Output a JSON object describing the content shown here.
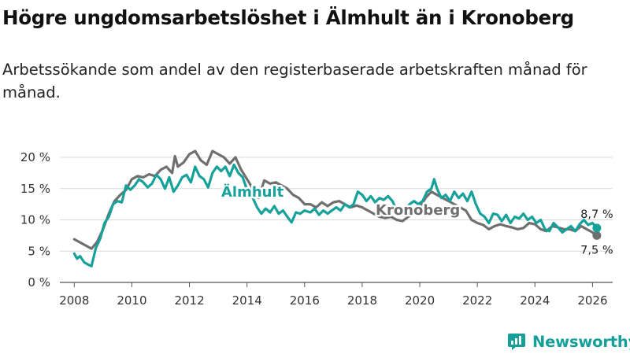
{
  "title": "Högre ungdomsarbetslöshet i Älmhult än i Kronoberg",
  "subtitle": "Arbetssökande som andel av den registerbaserade arbetskraften månad för månad.",
  "brand": {
    "name": "Newsworthy",
    "icon": "newsworthy-logo-icon"
  },
  "colors": {
    "almhult": "#16a19a",
    "kronoberg": "#6f6f6f",
    "grid": "#d9d9d9",
    "axis": "#555555"
  },
  "chart_data": {
    "type": "line",
    "title": "Högre ungdomsarbetslöshet i Älmhult än i Kronoberg",
    "xlabel": "",
    "ylabel": "",
    "xlim": [
      2007.5,
      2026.7
    ],
    "ylim": [
      0,
      21
    ],
    "y_ticks": [
      0,
      5,
      10,
      15,
      20
    ],
    "y_tick_labels": [
      "0 %",
      "5 %",
      "10 %",
      "15 %",
      "20 %"
    ],
    "x_ticks": [
      2008,
      2010,
      2012,
      2014,
      2016,
      2018,
      2020,
      2022,
      2024,
      2026
    ],
    "x_tick_labels": [
      "2008",
      "2010",
      "2012",
      "2014",
      "2016",
      "2018",
      "2020",
      "2022",
      "2024",
      "2026"
    ],
    "grid": true,
    "series": [
      {
        "name": "Kronoberg",
        "label": "Kronoberg",
        "end_label": "7,5 %",
        "end_value": 7.5,
        "points": [
          [
            2008.0,
            6.9
          ],
          [
            2008.2,
            6.4
          ],
          [
            2008.4,
            5.9
          ],
          [
            2008.6,
            5.4
          ],
          [
            2008.8,
            6.5
          ],
          [
            2009.0,
            8.5
          ],
          [
            2009.2,
            11.0
          ],
          [
            2009.4,
            13.0
          ],
          [
            2009.6,
            14.0
          ],
          [
            2009.8,
            14.8
          ],
          [
            2010.0,
            16.5
          ],
          [
            2010.2,
            17.0
          ],
          [
            2010.4,
            16.8
          ],
          [
            2010.6,
            17.3
          ],
          [
            2010.8,
            17.0
          ],
          [
            2011.0,
            18.0
          ],
          [
            2011.2,
            18.5
          ],
          [
            2011.4,
            17.5
          ],
          [
            2011.5,
            20.2
          ],
          [
            2011.6,
            18.5
          ],
          [
            2011.8,
            19.2
          ],
          [
            2012.0,
            20.5
          ],
          [
            2012.2,
            21.0
          ],
          [
            2012.4,
            19.5
          ],
          [
            2012.6,
            18.8
          ],
          [
            2012.8,
            21.0
          ],
          [
            2013.0,
            20.5
          ],
          [
            2013.2,
            20.0
          ],
          [
            2013.4,
            19.0
          ],
          [
            2013.6,
            20.0
          ],
          [
            2013.8,
            18.0
          ],
          [
            2014.0,
            16.5
          ],
          [
            2014.2,
            15.0
          ],
          [
            2014.4,
            13.5
          ],
          [
            2014.6,
            16.3
          ],
          [
            2014.8,
            15.8
          ],
          [
            2015.0,
            16.0
          ],
          [
            2015.2,
            15.5
          ],
          [
            2015.4,
            15.0
          ],
          [
            2015.6,
            14.0
          ],
          [
            2015.8,
            13.5
          ],
          [
            2016.0,
            12.5
          ],
          [
            2016.2,
            12.5
          ],
          [
            2016.4,
            12.0
          ],
          [
            2016.6,
            12.8
          ],
          [
            2016.8,
            12.2
          ],
          [
            2017.0,
            12.8
          ],
          [
            2017.2,
            13.0
          ],
          [
            2017.4,
            12.5
          ],
          [
            2017.6,
            12.0
          ],
          [
            2017.8,
            12.3
          ],
          [
            2018.0,
            12.0
          ],
          [
            2018.2,
            11.5
          ],
          [
            2018.4,
            11.0
          ],
          [
            2018.6,
            10.5
          ],
          [
            2018.8,
            10.3
          ],
          [
            2019.0,
            10.5
          ],
          [
            2019.2,
            10.0
          ],
          [
            2019.4,
            9.8
          ],
          [
            2019.6,
            10.5
          ],
          [
            2019.8,
            11.0
          ],
          [
            2020.0,
            12.0
          ],
          [
            2020.2,
            13.5
          ],
          [
            2020.4,
            14.5
          ],
          [
            2020.6,
            14.0
          ],
          [
            2020.8,
            13.5
          ],
          [
            2021.0,
            13.0
          ],
          [
            2021.2,
            12.5
          ],
          [
            2021.4,
            12.0
          ],
          [
            2021.6,
            11.5
          ],
          [
            2021.8,
            10.0
          ],
          [
            2022.0,
            9.5
          ],
          [
            2022.2,
            9.2
          ],
          [
            2022.4,
            8.5
          ],
          [
            2022.6,
            9.0
          ],
          [
            2022.8,
            9.3
          ],
          [
            2023.0,
            9.0
          ],
          [
            2023.2,
            8.8
          ],
          [
            2023.4,
            8.5
          ],
          [
            2023.6,
            8.7
          ],
          [
            2023.8,
            9.5
          ],
          [
            2024.0,
            9.3
          ],
          [
            2024.2,
            8.5
          ],
          [
            2024.4,
            8.2
          ],
          [
            2024.6,
            9.0
          ],
          [
            2024.8,
            8.8
          ],
          [
            2025.0,
            8.5
          ],
          [
            2025.2,
            8.5
          ],
          [
            2025.4,
            8.2
          ],
          [
            2025.6,
            9.0
          ],
          [
            2025.8,
            8.5
          ],
          [
            2026.0,
            8.0
          ],
          [
            2026.15,
            7.5
          ]
        ]
      },
      {
        "name": "Älmhult",
        "label": "Älmhult",
        "end_label": "8,7 %",
        "end_value": 8.7,
        "points": [
          [
            2008.0,
            4.6
          ],
          [
            2008.1,
            3.8
          ],
          [
            2008.2,
            4.2
          ],
          [
            2008.35,
            3.2
          ],
          [
            2008.5,
            2.8
          ],
          [
            2008.6,
            2.6
          ],
          [
            2008.75,
            5.5
          ],
          [
            2008.9,
            7.0
          ],
          [
            2009.05,
            9.5
          ],
          [
            2009.2,
            10.5
          ],
          [
            2009.35,
            12.5
          ],
          [
            2009.5,
            13.0
          ],
          [
            2009.65,
            12.8
          ],
          [
            2009.8,
            15.5
          ],
          [
            2009.95,
            14.8
          ],
          [
            2010.1,
            15.5
          ],
          [
            2010.25,
            16.5
          ],
          [
            2010.4,
            16.0
          ],
          [
            2010.55,
            15.2
          ],
          [
            2010.7,
            15.8
          ],
          [
            2010.85,
            17.2
          ],
          [
            2011.0,
            16.5
          ],
          [
            2011.15,
            15.0
          ],
          [
            2011.3,
            16.8
          ],
          [
            2011.45,
            14.5
          ],
          [
            2011.6,
            15.5
          ],
          [
            2011.75,
            16.8
          ],
          [
            2011.9,
            17.2
          ],
          [
            2012.05,
            16.0
          ],
          [
            2012.2,
            18.5
          ],
          [
            2012.35,
            17.0
          ],
          [
            2012.5,
            16.5
          ],
          [
            2012.65,
            15.2
          ],
          [
            2012.8,
            17.5
          ],
          [
            2012.95,
            18.5
          ],
          [
            2013.1,
            17.8
          ],
          [
            2013.25,
            18.5
          ],
          [
            2013.4,
            17.0
          ],
          [
            2013.55,
            18.8
          ],
          [
            2013.7,
            17.5
          ],
          [
            2013.85,
            16.8
          ],
          [
            2014.0,
            14.8
          ],
          [
            2014.2,
            13.5
          ],
          [
            2014.35,
            12.0
          ],
          [
            2014.5,
            11.0
          ],
          [
            2014.65,
            11.8
          ],
          [
            2014.8,
            11.2
          ],
          [
            2014.95,
            12.2
          ],
          [
            2015.1,
            11.0
          ],
          [
            2015.25,
            11.5
          ],
          [
            2015.4,
            10.5
          ],
          [
            2015.55,
            9.6
          ],
          [
            2015.7,
            11.2
          ],
          [
            2015.85,
            11.0
          ],
          [
            2016.0,
            11.5
          ],
          [
            2016.2,
            11.2
          ],
          [
            2016.35,
            11.8
          ],
          [
            2016.5,
            10.8
          ],
          [
            2016.65,
            11.5
          ],
          [
            2016.8,
            11.0
          ],
          [
            2016.95,
            11.5
          ],
          [
            2017.1,
            12.0
          ],
          [
            2017.25,
            11.5
          ],
          [
            2017.4,
            12.5
          ],
          [
            2017.55,
            12.0
          ],
          [
            2017.7,
            12.5
          ],
          [
            2017.85,
            14.5
          ],
          [
            2018.0,
            14.0
          ],
          [
            2018.15,
            13.0
          ],
          [
            2018.3,
            13.8
          ],
          [
            2018.45,
            12.8
          ],
          [
            2018.6,
            13.5
          ],
          [
            2018.75,
            13.2
          ],
          [
            2018.9,
            13.8
          ],
          [
            2019.05,
            13.0
          ],
          [
            2019.2,
            11.5
          ],
          [
            2019.35,
            12.0
          ],
          [
            2019.5,
            11.8
          ],
          [
            2019.65,
            12.5
          ],
          [
            2019.8,
            13.0
          ],
          [
            2019.95,
            12.5
          ],
          [
            2020.1,
            13.0
          ],
          [
            2020.25,
            14.5
          ],
          [
            2020.4,
            15.0
          ],
          [
            2020.5,
            16.5
          ],
          [
            2020.6,
            15.0
          ],
          [
            2020.75,
            13.5
          ],
          [
            2020.9,
            14.0
          ],
          [
            2021.05,
            13.0
          ],
          [
            2021.2,
            14.5
          ],
          [
            2021.35,
            13.5
          ],
          [
            2021.5,
            14.2
          ],
          [
            2021.65,
            13.0
          ],
          [
            2021.8,
            14.5
          ],
          [
            2021.95,
            12.5
          ],
          [
            2022.1,
            11.0
          ],
          [
            2022.25,
            10.5
          ],
          [
            2022.4,
            9.5
          ],
          [
            2022.55,
            11.0
          ],
          [
            2022.7,
            10.8
          ],
          [
            2022.85,
            9.8
          ],
          [
            2023.0,
            10.8
          ],
          [
            2023.15,
            9.5
          ],
          [
            2023.3,
            10.5
          ],
          [
            2023.45,
            10.2
          ],
          [
            2023.6,
            11.0
          ],
          [
            2023.75,
            10.0
          ],
          [
            2023.9,
            10.5
          ],
          [
            2024.05,
            9.5
          ],
          [
            2024.2,
            10.0
          ],
          [
            2024.35,
            8.5
          ],
          [
            2024.5,
            8.2
          ],
          [
            2024.65,
            9.5
          ],
          [
            2024.8,
            8.8
          ],
          [
            2024.95,
            8.0
          ],
          [
            2025.1,
            8.5
          ],
          [
            2025.25,
            9.0
          ],
          [
            2025.4,
            8.2
          ],
          [
            2025.55,
            9.3
          ],
          [
            2025.7,
            10.0
          ],
          [
            2025.85,
            9.2
          ],
          [
            2026.0,
            9.5
          ],
          [
            2026.15,
            8.7
          ]
        ]
      }
    ]
  }
}
